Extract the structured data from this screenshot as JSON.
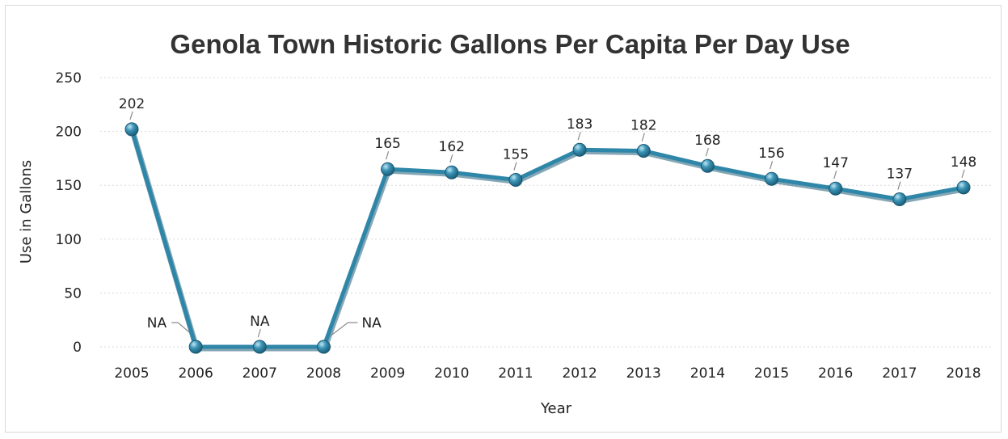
{
  "chart_data": {
    "type": "line",
    "title": "Genola Town Historic Gallons Per Capita Per Day Use",
    "xlabel": "Year",
    "ylabel": "Use in Gallons",
    "ylim": [
      0,
      250
    ],
    "yticks": [
      "0",
      "50",
      "100",
      "150",
      "200",
      "250"
    ],
    "grid": true,
    "legend": "none",
    "categories": [
      "2005",
      "2006",
      "2007",
      "2008",
      "2009",
      "2010",
      "2011",
      "2012",
      "2013",
      "2014",
      "2015",
      "2016",
      "2017",
      "2018"
    ],
    "series": [
      {
        "values": [
          202,
          0,
          0,
          0,
          165,
          162,
          155,
          183,
          182,
          168,
          156,
          147,
          137,
          148
        ],
        "labels": [
          "202",
          "NA",
          "NA",
          "NA",
          "165",
          "162",
          "155",
          "183",
          "182",
          "168",
          "156",
          "147",
          "137",
          "148"
        ],
        "color": "#2e86a8"
      }
    ]
  }
}
